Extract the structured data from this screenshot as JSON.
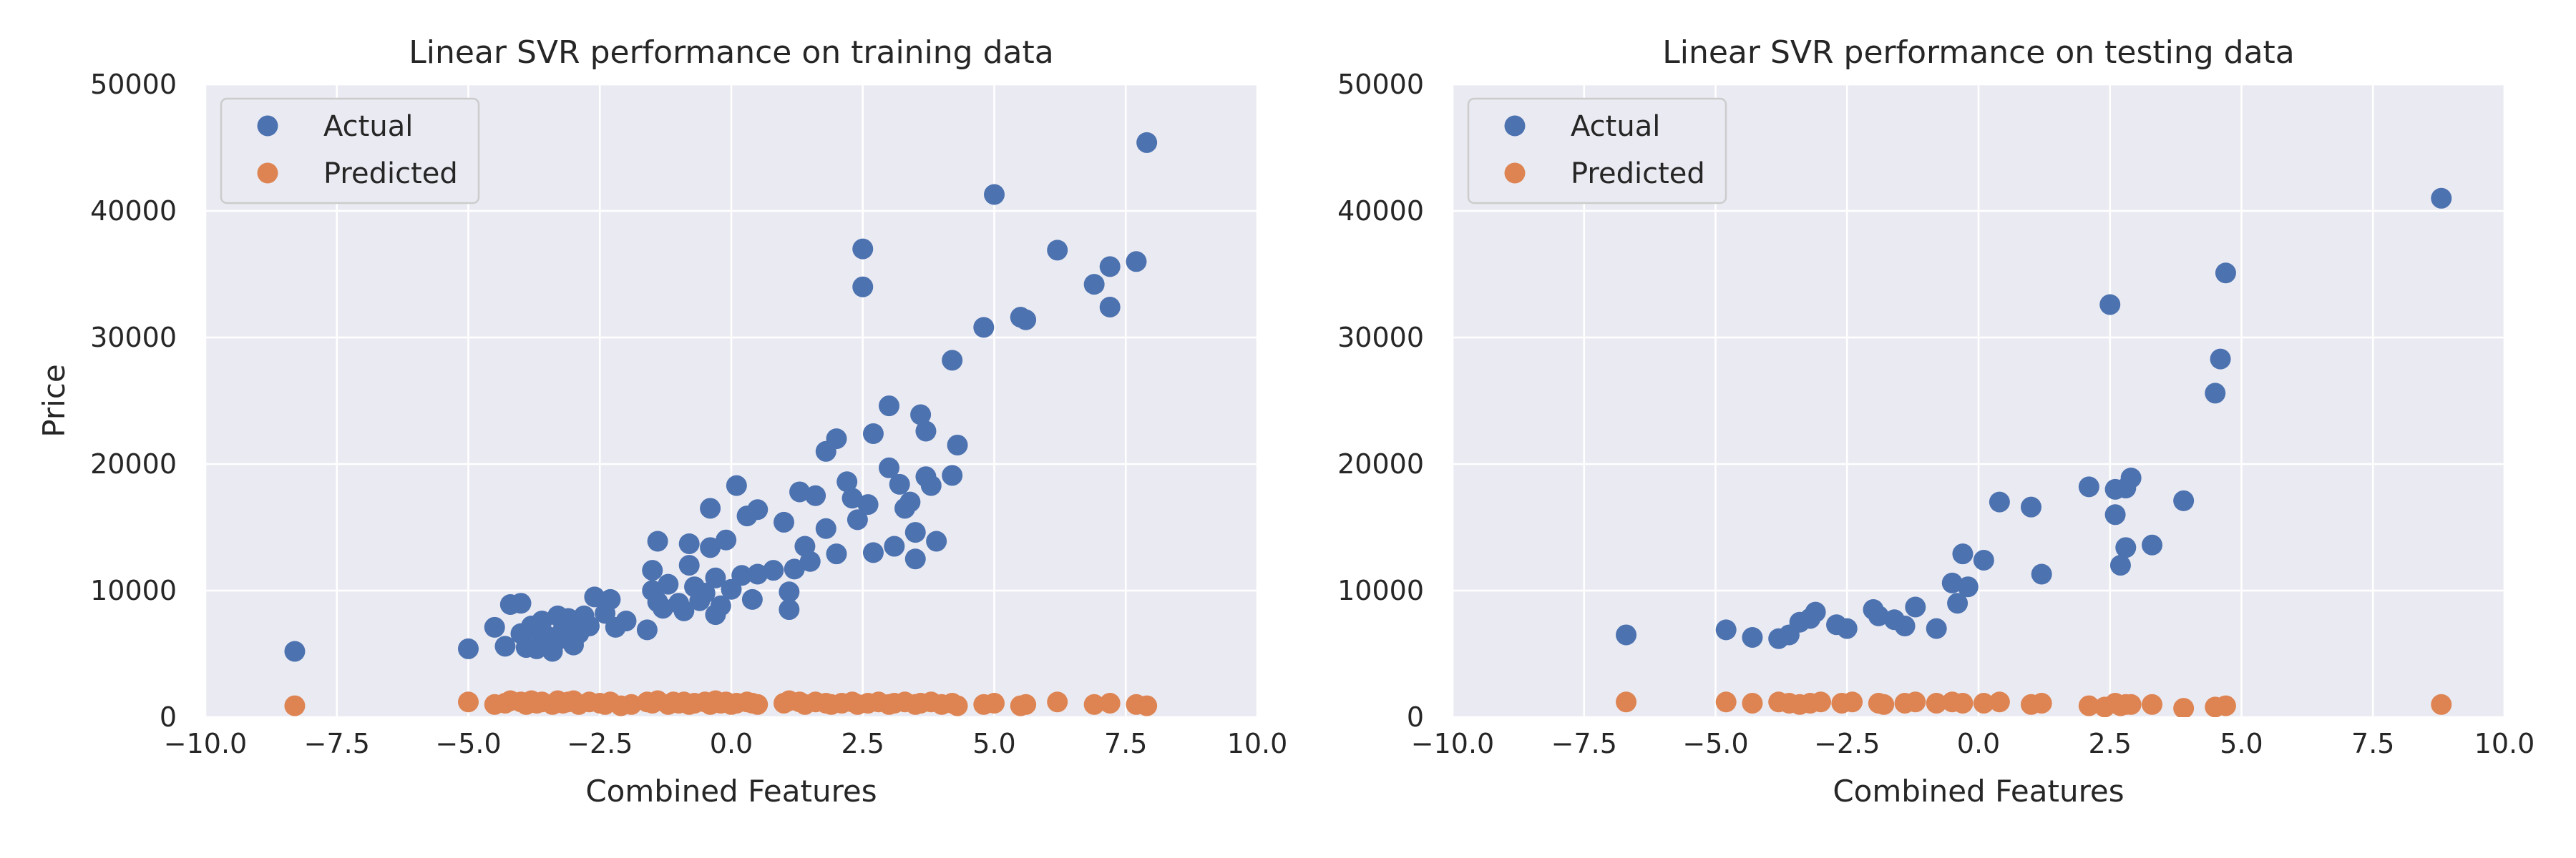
{
  "chart_data": [
    {
      "type": "scatter",
      "title": "Linear SVR performance on training data",
      "xlabel": "Combined Features",
      "ylabel": "Price",
      "xlim": [
        -10,
        10
      ],
      "ylim": [
        0,
        50000
      ],
      "xticks": [
        "−10.0",
        "−7.5",
        "−5.0",
        "−2.5",
        "0.0",
        "2.5",
        "5.0",
        "7.5",
        "10.0"
      ],
      "yticks": [
        "0",
        "10000",
        "20000",
        "30000",
        "40000",
        "50000"
      ],
      "grid": true,
      "legend_position": "top-left",
      "series": [
        {
          "name": "Actual",
          "color": "#4c72b0",
          "points": [
            [
              -8.3,
              5200
            ],
            [
              -5.0,
              5400
            ],
            [
              -4.5,
              7100
            ],
            [
              -4.3,
              5600
            ],
            [
              -4.2,
              8900
            ],
            [
              -4.0,
              9000
            ],
            [
              -4.0,
              6600
            ],
            [
              -3.9,
              5500
            ],
            [
              -3.8,
              7200
            ],
            [
              -3.7,
              6900
            ],
            [
              -3.7,
              5400
            ],
            [
              -3.6,
              7600
            ],
            [
              -3.5,
              6400
            ],
            [
              -3.4,
              5200
            ],
            [
              -3.3,
              8000
            ],
            [
              -3.3,
              6100
            ],
            [
              -3.2,
              6900
            ],
            [
              -3.1,
              7800
            ],
            [
              -3.0,
              5700
            ],
            [
              -3.0,
              7300
            ],
            [
              -2.9,
              6600
            ],
            [
              -2.8,
              8000
            ],
            [
              -2.7,
              7200
            ],
            [
              -2.6,
              9500
            ],
            [
              -2.4,
              8200
            ],
            [
              -2.3,
              9300
            ],
            [
              -2.2,
              7100
            ],
            [
              -2.0,
              7600
            ],
            [
              -1.6,
              6900
            ],
            [
              -1.5,
              10000
            ],
            [
              -1.5,
              11600
            ],
            [
              -1.4,
              13900
            ],
            [
              -1.4,
              9100
            ],
            [
              -1.3,
              8600
            ],
            [
              -1.2,
              10500
            ],
            [
              -1.0,
              9000
            ],
            [
              -0.9,
              8400
            ],
            [
              -0.8,
              12000
            ],
            [
              -0.8,
              13700
            ],
            [
              -0.7,
              10300
            ],
            [
              -0.6,
              9200
            ],
            [
              -0.5,
              9800
            ],
            [
              -0.4,
              16500
            ],
            [
              -0.4,
              13400
            ],
            [
              -0.3,
              11000
            ],
            [
              -0.3,
              8100
            ],
            [
              -0.2,
              8800
            ],
            [
              -0.1,
              14000
            ],
            [
              0.0,
              10100
            ],
            [
              0.1,
              18300
            ],
            [
              0.2,
              11200
            ],
            [
              0.3,
              15900
            ],
            [
              0.4,
              9300
            ],
            [
              0.5,
              16400
            ],
            [
              0.5,
              11300
            ],
            [
              0.8,
              11600
            ],
            [
              1.0,
              15400
            ],
            [
              1.1,
              9900
            ],
            [
              1.1,
              8500
            ],
            [
              1.2,
              11700
            ],
            [
              1.3,
              17800
            ],
            [
              1.4,
              13500
            ],
            [
              1.5,
              12300
            ],
            [
              1.6,
              17500
            ],
            [
              1.8,
              21000
            ],
            [
              1.8,
              14900
            ],
            [
              2.0,
              22000
            ],
            [
              2.0,
              12900
            ],
            [
              2.2,
              18600
            ],
            [
              2.3,
              17300
            ],
            [
              2.4,
              15600
            ],
            [
              2.5,
              37000
            ],
            [
              2.5,
              34000
            ],
            [
              2.6,
              16800
            ],
            [
              2.7,
              22400
            ],
            [
              2.7,
              13000
            ],
            [
              3.0,
              19700
            ],
            [
              3.0,
              24600
            ],
            [
              3.1,
              13500
            ],
            [
              3.2,
              18400
            ],
            [
              3.3,
              16500
            ],
            [
              3.4,
              17000
            ],
            [
              3.5,
              12500
            ],
            [
              3.5,
              14600
            ],
            [
              3.6,
              23900
            ],
            [
              3.7,
              22600
            ],
            [
              3.7,
              19000
            ],
            [
              3.8,
              18300
            ],
            [
              3.9,
              13900
            ],
            [
              4.2,
              28200
            ],
            [
              4.2,
              19100
            ],
            [
              4.3,
              21500
            ],
            [
              4.8,
              30800
            ],
            [
              5.0,
              41300
            ],
            [
              5.5,
              31600
            ],
            [
              5.6,
              31400
            ],
            [
              6.2,
              36900
            ],
            [
              6.9,
              34200
            ],
            [
              7.2,
              35600
            ],
            [
              7.2,
              32400
            ],
            [
              7.7,
              36000
            ],
            [
              7.9,
              45400
            ]
          ]
        },
        {
          "name": "Predicted",
          "color": "#dd8452",
          "points": [
            [
              -8.3,
              900
            ],
            [
              -5.0,
              1200
            ],
            [
              -4.5,
              1000
            ],
            [
              -4.3,
              1100
            ],
            [
              -4.2,
              1300
            ],
            [
              -4.0,
              1200
            ],
            [
              -3.9,
              1000
            ],
            [
              -3.8,
              1300
            ],
            [
              -3.7,
              1100
            ],
            [
              -3.6,
              1200
            ],
            [
              -3.4,
              1000
            ],
            [
              -3.3,
              1300
            ],
            [
              -3.2,
              1100
            ],
            [
              -3.1,
              1200
            ],
            [
              -3.0,
              1300
            ],
            [
              -2.9,
              1000
            ],
            [
              -2.7,
              1200
            ],
            [
              -2.5,
              1100
            ],
            [
              -2.4,
              1000
            ],
            [
              -2.3,
              1200
            ],
            [
              -2.1,
              900
            ],
            [
              -1.9,
              1000
            ],
            [
              -1.6,
              1200
            ],
            [
              -1.5,
              1100
            ],
            [
              -1.4,
              1300
            ],
            [
              -1.2,
              1000
            ],
            [
              -1.1,
              1200
            ],
            [
              -1.0,
              1100
            ],
            [
              -0.9,
              1200
            ],
            [
              -0.8,
              1000
            ],
            [
              -0.7,
              1100
            ],
            [
              -0.5,
              1200
            ],
            [
              -0.4,
              1000
            ],
            [
              -0.3,
              1300
            ],
            [
              -0.2,
              1100
            ],
            [
              -0.1,
              1200
            ],
            [
              0.0,
              1000
            ],
            [
              0.1,
              1100
            ],
            [
              0.3,
              1200
            ],
            [
              0.4,
              1100
            ],
            [
              0.5,
              1000
            ],
            [
              1.0,
              1100
            ],
            [
              1.1,
              1300
            ],
            [
              1.3,
              1200
            ],
            [
              1.4,
              1000
            ],
            [
              1.6,
              1200
            ],
            [
              1.8,
              1100
            ],
            [
              1.9,
              1000
            ],
            [
              2.1,
              1100
            ],
            [
              2.3,
              1200
            ],
            [
              2.4,
              1000
            ],
            [
              2.6,
              1100
            ],
            [
              2.8,
              1200
            ],
            [
              3.0,
              1000
            ],
            [
              3.1,
              1100
            ],
            [
              3.3,
              1200
            ],
            [
              3.5,
              1000
            ],
            [
              3.6,
              1100
            ],
            [
              3.8,
              1200
            ],
            [
              4.0,
              1000
            ],
            [
              4.2,
              1100
            ],
            [
              4.3,
              900
            ],
            [
              4.8,
              1000
            ],
            [
              5.0,
              1100
            ],
            [
              5.5,
              900
            ],
            [
              5.6,
              1000
            ],
            [
              6.2,
              1200
            ],
            [
              6.9,
              1000
            ],
            [
              7.2,
              1100
            ],
            [
              7.7,
              1000
            ],
            [
              7.9,
              900
            ]
          ]
        }
      ]
    },
    {
      "type": "scatter",
      "title": "Linear SVR performance on testing data",
      "xlabel": "Combined Features",
      "ylabel": "",
      "xlim": [
        -10,
        10
      ],
      "ylim": [
        0,
        50000
      ],
      "xticks": [
        "−10.0",
        "−7.5",
        "−5.0",
        "−2.5",
        "0.0",
        "2.5",
        "5.0",
        "7.5",
        "10.0"
      ],
      "yticks": [
        "0",
        "10000",
        "20000",
        "30000",
        "40000",
        "50000"
      ],
      "grid": true,
      "legend_position": "top-left",
      "series": [
        {
          "name": "Actual",
          "color": "#4c72b0",
          "points": [
            [
              -6.7,
              6500
            ],
            [
              -4.8,
              6900
            ],
            [
              -4.3,
              6300
            ],
            [
              -3.8,
              6200
            ],
            [
              -3.6,
              6500
            ],
            [
              -3.4,
              7500
            ],
            [
              -3.2,
              7800
            ],
            [
              -3.1,
              8300
            ],
            [
              -2.7,
              7300
            ],
            [
              -2.5,
              7000
            ],
            [
              -2.0,
              8500
            ],
            [
              -1.9,
              8000
            ],
            [
              -1.6,
              7700
            ],
            [
              -1.4,
              7200
            ],
            [
              -1.2,
              8700
            ],
            [
              -0.8,
              7000
            ],
            [
              -0.5,
              10600
            ],
            [
              -0.4,
              9000
            ],
            [
              -0.3,
              12900
            ],
            [
              -0.2,
              10300
            ],
            [
              0.1,
              12400
            ],
            [
              0.4,
              17000
            ],
            [
              1.0,
              16600
            ],
            [
              1.2,
              11300
            ],
            [
              2.1,
              18200
            ],
            [
              2.5,
              32600
            ],
            [
              2.6,
              16000
            ],
            [
              2.6,
              18000
            ],
            [
              2.7,
              12000
            ],
            [
              2.8,
              13400
            ],
            [
              2.8,
              18100
            ],
            [
              2.9,
              18900
            ],
            [
              3.3,
              13600
            ],
            [
              3.9,
              17100
            ],
            [
              4.5,
              25600
            ],
            [
              4.6,
              28300
            ],
            [
              4.7,
              35100
            ],
            [
              8.8,
              41000
            ]
          ]
        },
        {
          "name": "Predicted",
          "color": "#dd8452",
          "points": [
            [
              -6.7,
              1200
            ],
            [
              -4.8,
              1200
            ],
            [
              -4.3,
              1100
            ],
            [
              -3.8,
              1200
            ],
            [
              -3.6,
              1100
            ],
            [
              -3.4,
              1000
            ],
            [
              -3.2,
              1100
            ],
            [
              -3.0,
              1200
            ],
            [
              -2.6,
              1100
            ],
            [
              -2.4,
              1200
            ],
            [
              -1.9,
              1100
            ],
            [
              -1.8,
              1000
            ],
            [
              -1.4,
              1100
            ],
            [
              -1.2,
              1200
            ],
            [
              -0.8,
              1100
            ],
            [
              -0.5,
              1200
            ],
            [
              -0.3,
              1100
            ],
            [
              0.1,
              1100
            ],
            [
              0.4,
              1200
            ],
            [
              1.0,
              1000
            ],
            [
              1.2,
              1100
            ],
            [
              2.1,
              900
            ],
            [
              2.4,
              800
            ],
            [
              2.6,
              1100
            ],
            [
              2.7,
              900
            ],
            [
              2.8,
              1000
            ],
            [
              2.9,
              1000
            ],
            [
              3.3,
              1000
            ],
            [
              3.9,
              700
            ],
            [
              4.5,
              800
            ],
            [
              4.7,
              900
            ],
            [
              8.8,
              1000
            ]
          ]
        }
      ]
    }
  ]
}
